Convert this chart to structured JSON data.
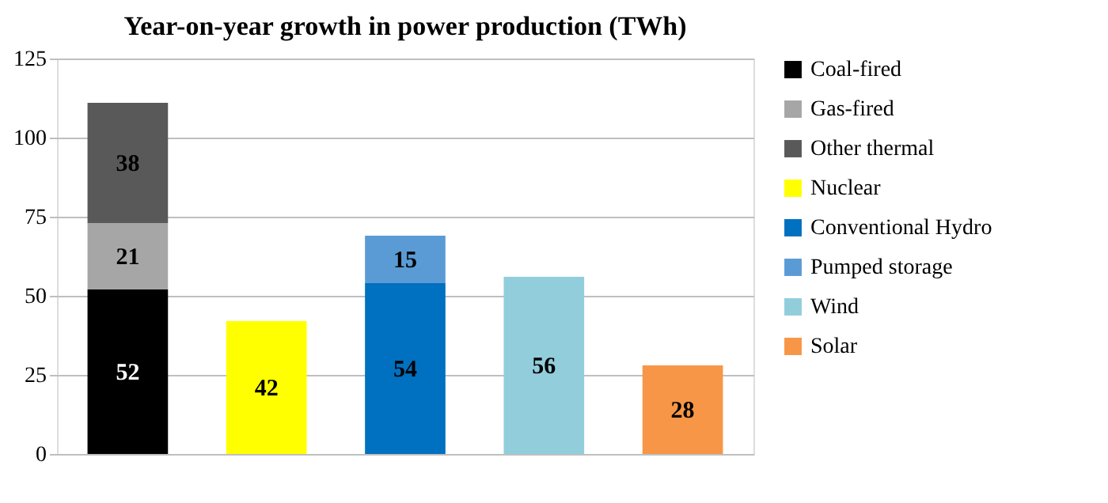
{
  "chart_data": {
    "type": "bar",
    "title": "Year-on-year growth in power production (TWh)",
    "stacked": true,
    "data_labels": true,
    "grid": "y",
    "legend": "right",
    "tick_labels": "y",
    "categories": [
      null,
      null,
      null,
      null,
      null
    ],
    "ylim": [
      0,
      125
    ],
    "yticks": [
      0,
      25,
      50,
      75,
      100,
      125
    ],
    "series": [
      {
        "name": "Coal-fired",
        "color": "#000000",
        "values": [
          52,
          null,
          null,
          null,
          null
        ]
      },
      {
        "name": "Gas-fired",
        "color": "#a6a6a6",
        "values": [
          21,
          null,
          null,
          null,
          null
        ]
      },
      {
        "name": "Other thermal",
        "color": "#595959",
        "values": [
          38,
          null,
          null,
          null,
          null
        ]
      },
      {
        "name": "Nuclear",
        "color": "#ffff00",
        "values": [
          null,
          42,
          null,
          null,
          null
        ]
      },
      {
        "name": "Conventional Hydro",
        "color": "#0070c0",
        "values": [
          null,
          null,
          54,
          null,
          null
        ]
      },
      {
        "name": "Pumped storage",
        "color": "#5b9bd5",
        "values": [
          null,
          null,
          15,
          null,
          null
        ]
      },
      {
        "name": "Wind",
        "color": "#92cddc",
        "values": [
          null,
          null,
          null,
          56,
          null
        ]
      },
      {
        "name": "Solar",
        "color": "#f79646",
        "values": [
          null,
          null,
          null,
          null,
          28
        ]
      }
    ]
  }
}
